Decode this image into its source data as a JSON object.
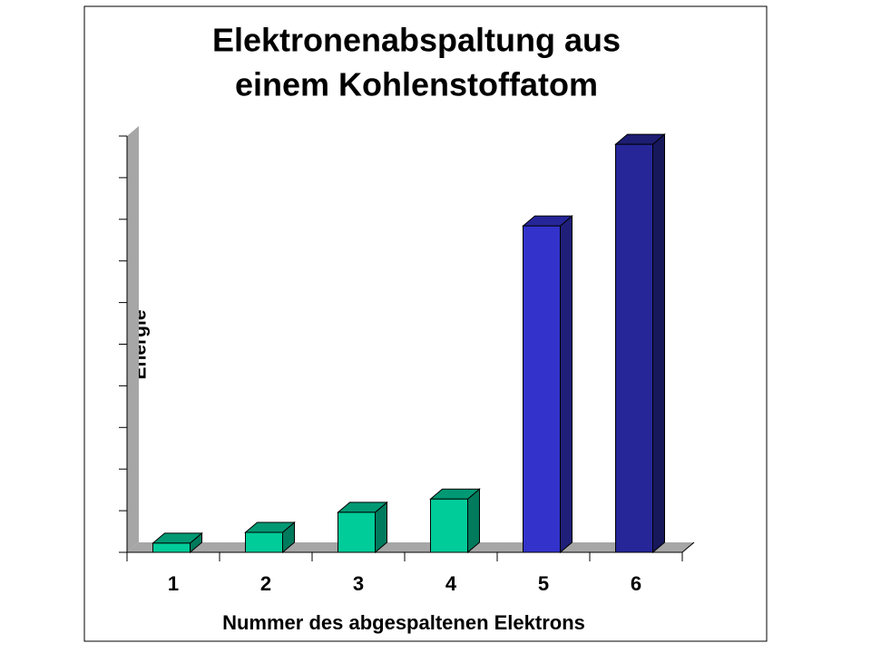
{
  "chart_data": {
    "type": "bar3d",
    "title": [
      "Elektronenabspaltung aus",
      "einem Kohlenstoffatom"
    ],
    "x_label": "Nummer des abgespaltenen Elektrons",
    "y_label": "Energie",
    "categories": [
      "1",
      "2",
      "3",
      "4",
      "5",
      "6"
    ],
    "values": [
      11,
      24,
      48,
      64,
      392,
      490
    ],
    "colors": [
      "#00cc99",
      "#00cc99",
      "#00cc99",
      "#00cc99",
      "#3333cc",
      "#262699"
    ],
    "ylim": [
      0,
      500
    ],
    "yticks": [
      0,
      50,
      100,
      150,
      200,
      250,
      300,
      350,
      400,
      450,
      500
    ]
  }
}
